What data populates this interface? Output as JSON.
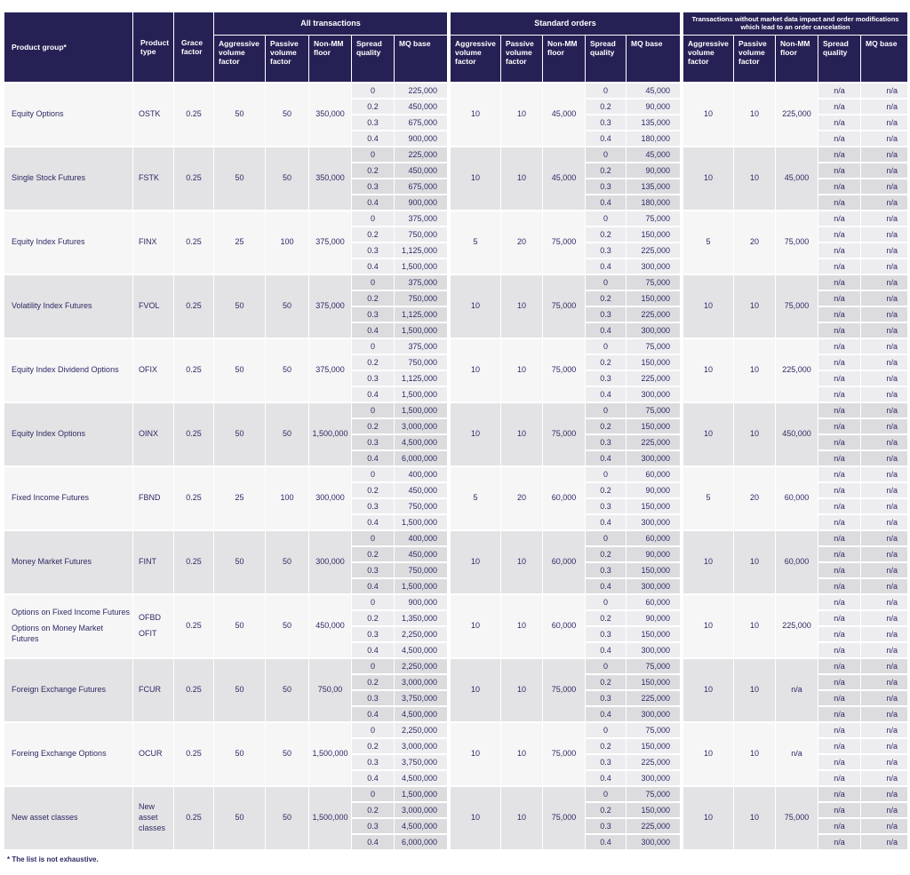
{
  "colors": {
    "header_bg": "#262155",
    "text": "#2d2a63",
    "row_light": "#f6f6f7",
    "row_light_box": "#ededf0",
    "row_dark": "#e3e3e5",
    "row_dark_box": "#dcdcdf"
  },
  "header": {
    "product_group": "Product group*",
    "product_type": "Product type",
    "grace_factor": "Grace factor",
    "sections": [
      {
        "title": "All transactions",
        "columns": [
          "Aggressive volume factor",
          "Passive volume factor",
          "Non-MM floor",
          "Spread quality",
          "MQ base"
        ]
      },
      {
        "title": "Standard orders",
        "columns": [
          "Aggressive volume factor",
          "Passive volume factor",
          "Non-MM floor",
          "Spread quality",
          "MQ base"
        ]
      },
      {
        "title": "Transactions without  market data impact and order modifications which lead to an order cancelation",
        "columns": [
          "Aggressive volume factor",
          "Passive volume factor",
          "Non-MM floor",
          "Spread quality",
          "MQ base"
        ]
      }
    ]
  },
  "footnote": "* The list is not exhaustive.",
  "rows": [
    {
      "group": "Equity Options",
      "type": "OSTK",
      "grace": "0.25",
      "all": {
        "agg": "50",
        "pas": "50",
        "floor": "350,000",
        "spread": [
          "0",
          "0.2",
          "0.3",
          "0.4"
        ],
        "mq": [
          "225,000",
          "450,000",
          "675,000",
          "900,000"
        ]
      },
      "std": {
        "agg": "10",
        "pas": "10",
        "floor": "45,000",
        "spread": [
          "0",
          "0.2",
          "0.3",
          "0.4"
        ],
        "mq": [
          "45,000",
          "90,000",
          "135,000",
          "180,000"
        ]
      },
      "nd": {
        "agg": "10",
        "pas": "10",
        "floor": "225,000",
        "spread": [
          "n/a",
          "n/a",
          "n/a",
          "n/a"
        ],
        "mq": [
          "n/a",
          "n/a",
          "n/a",
          "n/a"
        ]
      }
    },
    {
      "group": "Single Stock Futures",
      "type": "FSTK",
      "grace": "0.25",
      "all": {
        "agg": "50",
        "pas": "50",
        "floor": "350,000",
        "spread": [
          "0",
          "0.2",
          "0.3",
          "0.4"
        ],
        "mq": [
          "225,000",
          "450,000",
          "675,000",
          "900,000"
        ]
      },
      "std": {
        "agg": "10",
        "pas": "10",
        "floor": "45,000",
        "spread": [
          "0",
          "0.2",
          "0.3",
          "0.4"
        ],
        "mq": [
          "45,000",
          "90,000",
          "135,000",
          "180,000"
        ]
      },
      "nd": {
        "agg": "10",
        "pas": "10",
        "floor": "45,000",
        "spread": [
          "n/a",
          "n/a",
          "n/a",
          "n/a"
        ],
        "mq": [
          "n/a",
          "n/a",
          "n/a",
          "n/a"
        ]
      }
    },
    {
      "group": "Equity Index Futures",
      "type": "FINX",
      "grace": "0.25",
      "all": {
        "agg": "25",
        "pas": "100",
        "floor": "375,000",
        "spread": [
          "0",
          "0.2",
          "0.3",
          "0.4"
        ],
        "mq": [
          "375,000",
          "750,000",
          "1,125,000",
          "1,500,000"
        ]
      },
      "std": {
        "agg": "5",
        "pas": "20",
        "floor": "75,000",
        "spread": [
          "0",
          "0.2",
          "0.3",
          "0.4"
        ],
        "mq": [
          "75,000",
          "150,000",
          "225,000",
          "300,000"
        ]
      },
      "nd": {
        "agg": "5",
        "pas": "20",
        "floor": "75,000",
        "spread": [
          "n/a",
          "n/a",
          "n/a",
          "n/a"
        ],
        "mq": [
          "n/a",
          "n/a",
          "n/a",
          "n/a"
        ]
      }
    },
    {
      "group": "Volatility Index Futures",
      "type": "FVOL",
      "grace": "0.25",
      "all": {
        "agg": "50",
        "pas": "50",
        "floor": "375,000",
        "spread": [
          "0",
          "0.2",
          "0.3",
          "0.4"
        ],
        "mq": [
          "375,000",
          "750,000",
          "1,125,000",
          "1,500,000"
        ]
      },
      "std": {
        "agg": "10",
        "pas": "10",
        "floor": "75,000",
        "spread": [
          "0",
          "0.2",
          "0.3",
          "0.4"
        ],
        "mq": [
          "75,000",
          "150,000",
          "225,000",
          "300,000"
        ]
      },
      "nd": {
        "agg": "10",
        "pas": "10",
        "floor": "75,000",
        "spread": [
          "n/a",
          "n/a",
          "n/a",
          "n/a"
        ],
        "mq": [
          "n/a",
          "n/a",
          "n/a",
          "n/a"
        ]
      }
    },
    {
      "group": "Equity Index Dividend Options",
      "type": "OFIX",
      "grace": "0.25",
      "all": {
        "agg": "50",
        "pas": "50",
        "floor": "375,000",
        "spread": [
          "0",
          "0.2",
          "0.3",
          "0.4"
        ],
        "mq": [
          "375,000",
          "750,000",
          "1,125,000",
          "1,500,000"
        ]
      },
      "std": {
        "agg": "10",
        "pas": "10",
        "floor": "75,000",
        "spread": [
          "0",
          "0.2",
          "0.3",
          "0.4"
        ],
        "mq": [
          "75,000",
          "150,000",
          "225,000",
          "300,000"
        ]
      },
      "nd": {
        "agg": "10",
        "pas": "10",
        "floor": "225,000",
        "spread": [
          "n/a",
          "n/a",
          "n/a",
          "n/a"
        ],
        "mq": [
          "n/a",
          "n/a",
          "n/a",
          "n/a"
        ]
      }
    },
    {
      "group": "Equity Index Options",
      "type": "OINX",
      "grace": "0.25",
      "all": {
        "agg": "50",
        "pas": "50",
        "floor": "1,500,000",
        "spread": [
          "0",
          "0.2",
          "0.3",
          "0.4"
        ],
        "mq": [
          "1,500,000",
          "3,000,000",
          "4,500,000",
          "6,000,000"
        ]
      },
      "std": {
        "agg": "10",
        "pas": "10",
        "floor": "75,000",
        "spread": [
          "0",
          "0.2",
          "0.3",
          "0.4"
        ],
        "mq": [
          "75,000",
          "150,000",
          "225,000",
          "300,000"
        ]
      },
      "nd": {
        "agg": "10",
        "pas": "10",
        "floor": "450,000",
        "spread": [
          "n/a",
          "n/a",
          "n/a",
          "n/a"
        ],
        "mq": [
          "n/a",
          "n/a",
          "n/a",
          "n/a"
        ]
      }
    },
    {
      "group": "Fixed Income Futures",
      "type": "FBND",
      "grace": "0.25",
      "all": {
        "agg": "25",
        "pas": "100",
        "floor": "300,000",
        "spread": [
          "0",
          "0.2",
          "0.3",
          "0.4"
        ],
        "mq": [
          "400,000",
          "450,000",
          "750,000",
          "1,500,000"
        ]
      },
      "std": {
        "agg": "5",
        "pas": "20",
        "floor": "60,000",
        "spread": [
          "0",
          "0.2",
          "0.3",
          "0.4"
        ],
        "mq": [
          "60,000",
          "90,000",
          "150,000",
          "300,000"
        ]
      },
      "nd": {
        "agg": "5",
        "pas": "20",
        "floor": "60,000",
        "spread": [
          "n/a",
          "n/a",
          "n/a",
          "n/a"
        ],
        "mq": [
          "n/a",
          "n/a",
          "n/a",
          "n/a"
        ]
      }
    },
    {
      "group": "Money Market Futures",
      "type": "FINT",
      "grace": "0.25",
      "all": {
        "agg": "50",
        "pas": "50",
        "floor": "300,000",
        "spread": [
          "0",
          "0.2",
          "0.3",
          "0.4"
        ],
        "mq": [
          "400,000",
          "450,000",
          "750,000",
          "1,500,000"
        ]
      },
      "std": {
        "agg": "10",
        "pas": "10",
        "floor": "60,000",
        "spread": [
          "0",
          "0.2",
          "0.3",
          "0.4"
        ],
        "mq": [
          "60,000",
          "90,000",
          "150,000",
          "300,000"
        ]
      },
      "nd": {
        "agg": "10",
        "pas": "10",
        "floor": "60,000",
        "spread": [
          "n/a",
          "n/a",
          "n/a",
          "n/a"
        ],
        "mq": [
          "n/a",
          "n/a",
          "n/a",
          "n/a"
        ]
      }
    },
    {
      "group": [
        "Options on Fixed Income Futures",
        "Options on Money Market Futures"
      ],
      "type": [
        "OFBD",
        "OFIT"
      ],
      "grace": "0.25",
      "all": {
        "agg": "50",
        "pas": "50",
        "floor": "450,000",
        "spread": [
          "0",
          "0.2",
          "0.3",
          "0.4"
        ],
        "mq": [
          "900,000",
          "1,350,000",
          "2,250,000",
          "4,500,000"
        ]
      },
      "std": {
        "agg": "10",
        "pas": "10",
        "floor": "60,000",
        "spread": [
          "0",
          "0.2",
          "0.3",
          "0.4"
        ],
        "mq": [
          "60,000",
          "90,000",
          "150,000",
          "300,000"
        ]
      },
      "nd": {
        "agg": "10",
        "pas": "10",
        "floor": "225,000",
        "spread": [
          "n/a",
          "n/a",
          "n/a",
          "n/a"
        ],
        "mq": [
          "n/a",
          "n/a",
          "n/a",
          "n/a"
        ]
      }
    },
    {
      "group": "Foreign Exchange Futures",
      "type": "FCUR",
      "grace": "0.25",
      "all": {
        "agg": "50",
        "pas": "50",
        "floor": "750,00",
        "spread": [
          "0",
          "0.2",
          "0.3",
          "0.4"
        ],
        "mq": [
          "2,250,000",
          "3,000,000",
          "3,750,000",
          "4,500,000"
        ]
      },
      "std": {
        "agg": "10",
        "pas": "10",
        "floor": "75,000",
        "spread": [
          "0",
          "0.2",
          "0.3",
          "0.4"
        ],
        "mq": [
          "75,000",
          "150,000",
          "225,000",
          "300,000"
        ]
      },
      "nd": {
        "agg": "10",
        "pas": "10",
        "floor": "n/a",
        "spread": [
          "n/a",
          "n/a",
          "n/a",
          "n/a"
        ],
        "mq": [
          "n/a",
          "n/a",
          "n/a",
          "n/a"
        ]
      }
    },
    {
      "group": "Foreing Exchange Options",
      "type": "OCUR",
      "grace": "0.25",
      "all": {
        "agg": "50",
        "pas": "50",
        "floor": "1,500,000",
        "spread": [
          "0",
          "0.2",
          "0.3",
          "0.4"
        ],
        "mq": [
          "2,250,000",
          "3,000,000",
          "3,750,000",
          "4,500,000"
        ]
      },
      "std": {
        "agg": "10",
        "pas": "10",
        "floor": "75,000",
        "spread": [
          "0",
          "0.2",
          "0.3",
          "0.4"
        ],
        "mq": [
          "75,000",
          "150,000",
          "225,000",
          "300,000"
        ]
      },
      "nd": {
        "agg": "10",
        "pas": "10",
        "floor": "n/a",
        "spread": [
          "n/a",
          "n/a",
          "n/a",
          "n/a"
        ],
        "mq": [
          "n/a",
          "n/a",
          "n/a",
          "n/a"
        ]
      }
    },
    {
      "group": "New asset classes",
      "type": "New asset classes",
      "grace": "0.25",
      "all": {
        "agg": "50",
        "pas": "50",
        "floor": "1,500,000",
        "spread": [
          "0",
          "0.2",
          "0.3",
          "0.4"
        ],
        "mq": [
          "1,500,000",
          "3,000,000",
          "4,500,000",
          "6,000,000"
        ]
      },
      "std": {
        "agg": "10",
        "pas": "10",
        "floor": "75,000",
        "spread": [
          "0",
          "0.2",
          "0.3",
          "0.4"
        ],
        "mq": [
          "75,000",
          "150,000",
          "225,000",
          "300,000"
        ]
      },
      "nd": {
        "agg": "10",
        "pas": "10",
        "floor": "75,000",
        "spread": [
          "n/a",
          "n/a",
          "n/a",
          "n/a"
        ],
        "mq": [
          "n/a",
          "n/a",
          "n/a",
          "n/a"
        ]
      }
    }
  ]
}
